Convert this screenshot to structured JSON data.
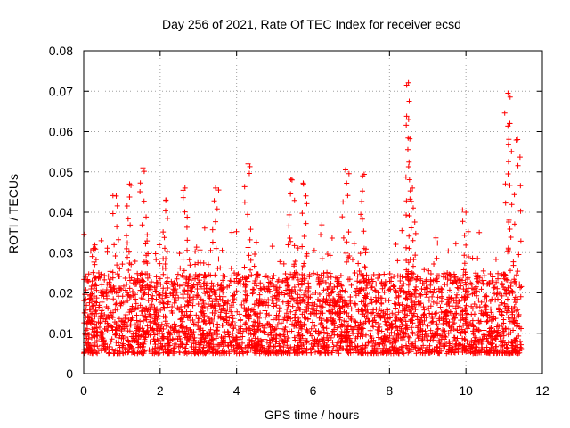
{
  "chart_data": {
    "type": "scatter",
    "title": "Day 256 of 2021, Rate Of TEC Index for receiver ecsd",
    "xlabel": "GPS time / hours",
    "ylabel": "ROTI / TECUs",
    "xlim": [
      0,
      12
    ],
    "ylim": [
      0,
      0.08
    ],
    "xticks": [
      0,
      2,
      4,
      6,
      8,
      10,
      12
    ],
    "yticks": [
      0,
      0.01,
      0.02,
      0.03,
      0.04,
      0.05,
      0.06,
      0.07,
      0.08
    ],
    "xtick_labels": [
      "0",
      "2",
      "4",
      "6",
      "8",
      "10",
      "12"
    ],
    "ytick_labels": [
      "0",
      "0.01",
      "0.02",
      "0.03",
      "0.04",
      "0.05",
      "0.06",
      "0.07",
      "0.08"
    ],
    "grid": true,
    "marker": "+",
    "series": [
      {
        "name": "ROTI",
        "color": "#ff0000",
        "x_range": [
          0,
          11.45
        ],
        "typical_range": [
          0.005,
          0.025
        ],
        "peaks": [
          {
            "x": 0.25,
            "y": 0.031
          },
          {
            "x": 0.85,
            "y": 0.044
          },
          {
            "x": 1.2,
            "y": 0.047
          },
          {
            "x": 1.55,
            "y": 0.051
          },
          {
            "x": 2.15,
            "y": 0.043
          },
          {
            "x": 2.65,
            "y": 0.046
          },
          {
            "x": 3.45,
            "y": 0.046
          },
          {
            "x": 4.3,
            "y": 0.052
          },
          {
            "x": 5.45,
            "y": 0.048
          },
          {
            "x": 5.75,
            "y": 0.047
          },
          {
            "x": 6.85,
            "y": 0.0505
          },
          {
            "x": 7.3,
            "y": 0.049
          },
          {
            "x": 8.45,
            "y": 0.0715
          },
          {
            "x": 8.5,
            "y": 0.063
          },
          {
            "x": 8.6,
            "y": 0.046
          },
          {
            "x": 10.0,
            "y": 0.04
          },
          {
            "x": 11.1,
            "y": 0.0695
          },
          {
            "x": 11.15,
            "y": 0.062
          },
          {
            "x": 11.35,
            "y": 0.058
          }
        ]
      }
    ]
  }
}
